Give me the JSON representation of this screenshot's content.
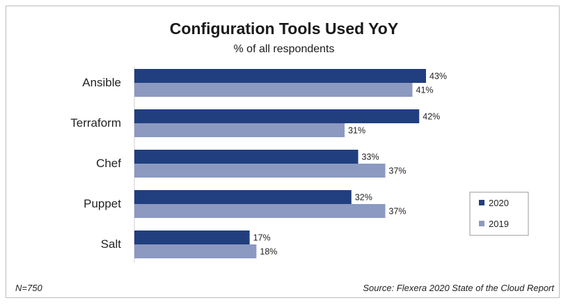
{
  "chart_data": {
    "type": "bar",
    "orientation": "horizontal",
    "title": "Configuration Tools Used YoY",
    "subtitle": "% of all respondents",
    "categories": [
      "Ansible",
      "Terraform",
      "Chef",
      "Puppet",
      "Salt"
    ],
    "series": [
      {
        "name": "2020",
        "values": [
          43,
          42,
          33,
          32,
          17
        ],
        "labels": [
          "43%",
          "42%",
          "33%",
          "32%",
          "17%"
        ],
        "color": "#213f7f"
      },
      {
        "name": "2019",
        "values": [
          41,
          31,
          37,
          37,
          18
        ],
        "labels": [
          "41%",
          "31%",
          "37%",
          "37%",
          "18%"
        ],
        "color": "#8c99c1"
      }
    ],
    "xlim": [
      0,
      50
    ],
    "grid": false,
    "legend_position": "right",
    "note_left": "N=750",
    "note_right": "Source: Flexera 2020 State of the Cloud Report"
  }
}
